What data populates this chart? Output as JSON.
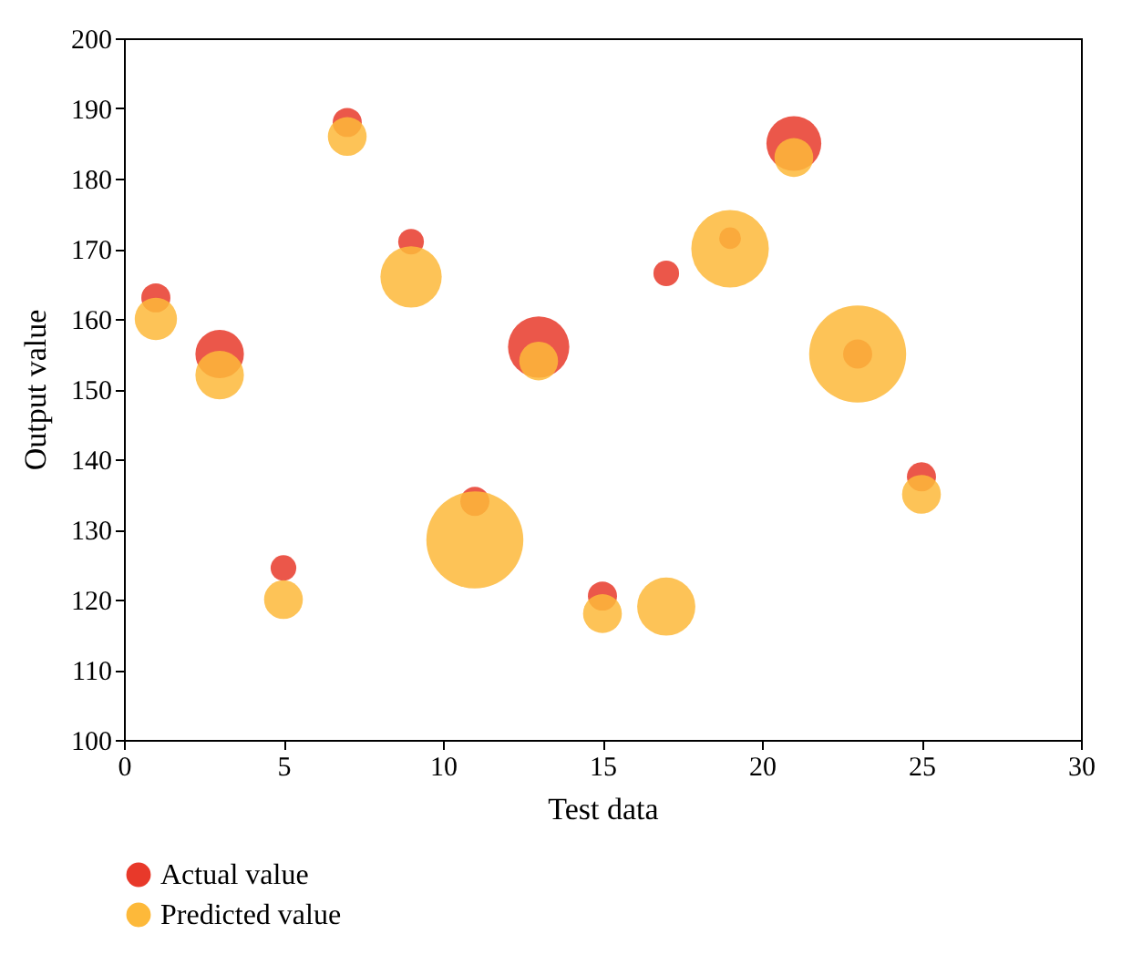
{
  "chart_data": {
    "type": "bubble",
    "xlabel": "Test data",
    "ylabel": "Output value",
    "xlim": [
      0,
      30
    ],
    "xticks": [
      0,
      5,
      10,
      15,
      20,
      25,
      30
    ],
    "ylim": [
      100,
      200
    ],
    "yticks": [
      100,
      110,
      120,
      130,
      140,
      150,
      160,
      170,
      180,
      190,
      200
    ],
    "grid": false,
    "legend": "bottom",
    "marker": "circle",
    "series": [
      {
        "name": "Actual value",
        "color": "#e8392a",
        "x": [
          1,
          3,
          5,
          7,
          9,
          11,
          13,
          15,
          17,
          19,
          21,
          23,
          25
        ],
        "values": [
          163,
          155,
          124.5,
          188,
          171,
          134,
          156,
          120.5,
          166.5,
          171.5,
          185,
          155,
          137.5
        ],
        "sizes": [
          0.09,
          0.25,
          0.07,
          0.09,
          0.07,
          0.09,
          0.4,
          0.09,
          0.07,
          0.05,
          0.32,
          0.09,
          0.09
        ]
      },
      {
        "name": "Predicted value",
        "color": "#fdb93a",
        "x": [
          1,
          3,
          5,
          7,
          9,
          11,
          13,
          15,
          17,
          19,
          21,
          23,
          25
        ],
        "values": [
          160,
          152,
          120,
          186,
          166,
          128.5,
          154,
          118,
          119,
          170,
          183,
          155,
          135
        ],
        "sizes": [
          0.19,
          0.25,
          0.16,
          0.16,
          0.4,
          1,
          0.16,
          0.16,
          0.36,
          0.64,
          0.16,
          1,
          0.16
        ]
      }
    ]
  }
}
